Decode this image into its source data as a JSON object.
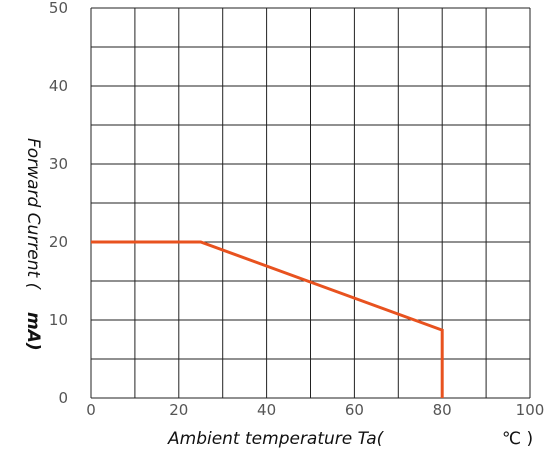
{
  "chart_data": {
    "type": "line",
    "xlabel_main": "Ambient temperature Ta(",
    "xlabel_unit": "℃ )",
    "ylabel_main": "Forward Current (",
    "ylabel_unit": "mA)",
    "xlim": [
      0,
      100
    ],
    "ylim": [
      0,
      50
    ],
    "x_ticks": [
      "0",
      "20",
      "40",
      "60",
      "80",
      "100"
    ],
    "y_ticks": [
      "0",
      "10",
      "20",
      "30",
      "40",
      "50"
    ],
    "grid": true,
    "line_color": "#e8521f",
    "series": [
      {
        "x": [
          0,
          25,
          80,
          80,
          80
        ],
        "y": [
          20,
          20,
          8.7,
          8.7,
          0
        ]
      }
    ]
  }
}
